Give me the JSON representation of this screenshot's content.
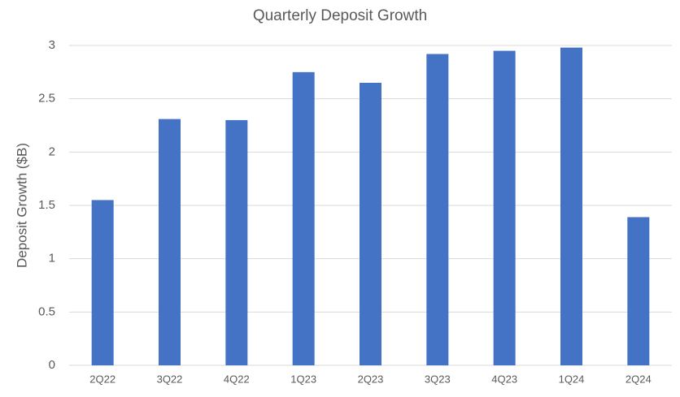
{
  "chart_data": {
    "type": "bar",
    "title": "Quarterly Deposit Growth",
    "y_label": "Deposit Growth ($B)",
    "categories": [
      "2Q22",
      "3Q22",
      "4Q22",
      "1Q23",
      "2Q23",
      "3Q23",
      "4Q23",
      "1Q24",
      "2Q24"
    ],
    "values": [
      1.55,
      2.31,
      2.3,
      2.75,
      2.65,
      2.92,
      2.95,
      2.98,
      1.39
    ],
    "color": "#4472c4",
    "ylim": [
      0,
      3
    ],
    "yticks": [
      0,
      0.5,
      1,
      1.5,
      2,
      2.5,
      3
    ],
    "grid": true
  }
}
